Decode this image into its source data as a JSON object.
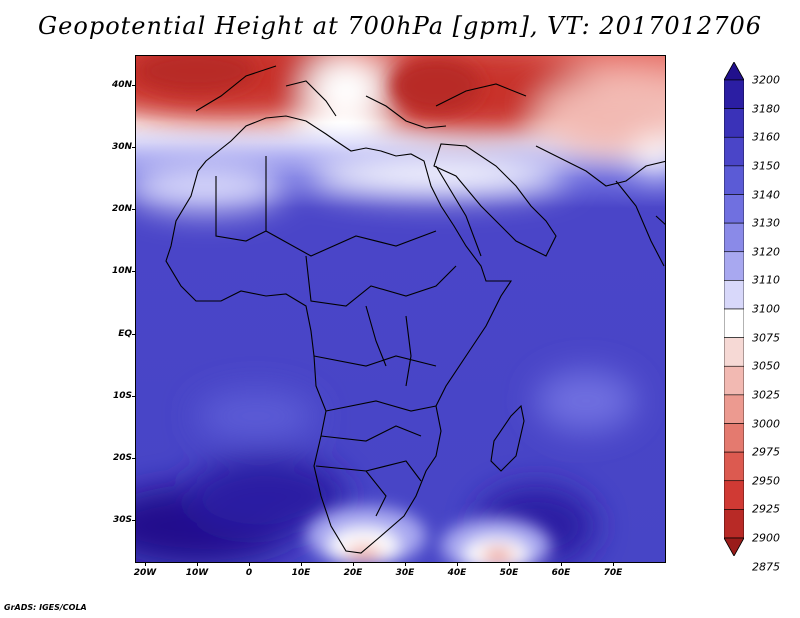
{
  "title": "Geopotential Height at 700hPa [gpm], VT: 2017012706",
  "footer": "GrADS: IGES/COLA",
  "map": {
    "variable": "Geopotential Height at 700hPa",
    "units": "gpm",
    "lon_range": [
      -20,
      80
    ],
    "lat_range": [
      -37,
      45
    ],
    "lat_labels": [
      "40N",
      "30N",
      "20N",
      "10N",
      "EQ",
      "10S",
      "20S",
      "30S"
    ],
    "lon_labels": [
      "20W",
      "10W",
      "0",
      "10E",
      "20E",
      "30E",
      "40E",
      "50E",
      "60E",
      "70E"
    ],
    "features": [
      {
        "name": "Low heights over Mediterranean / Turkey",
        "min_value": 2875
      },
      {
        "name": "Low heights near south tip of Africa",
        "value": 3075
      },
      {
        "name": "Low heights south of Madagascar",
        "value": 3050
      },
      {
        "name": "High heights over South Atlantic",
        "value": 3180
      }
    ]
  },
  "colorbar": {
    "levels": [
      "3200",
      "3180",
      "3160",
      "3150",
      "3140",
      "3130",
      "3120",
      "3110",
      "3100",
      "3075",
      "3050",
      "3025",
      "3000",
      "2975",
      "2950",
      "2925",
      "2900",
      "2875"
    ],
    "colors": [
      "#21108c",
      "#2b1ea3",
      "#3a32b8",
      "#4a45c8",
      "#5b5bd6",
      "#7070e0",
      "#8a8ae8",
      "#a8a8f0",
      "#d8d8fa",
      "#ffffff",
      "#f6d9d5",
      "#f2b9b2",
      "#ec9a90",
      "#e47a6f",
      "#dc5a50",
      "#d03a34",
      "#b82a26",
      "#9a1c1a"
    ]
  }
}
